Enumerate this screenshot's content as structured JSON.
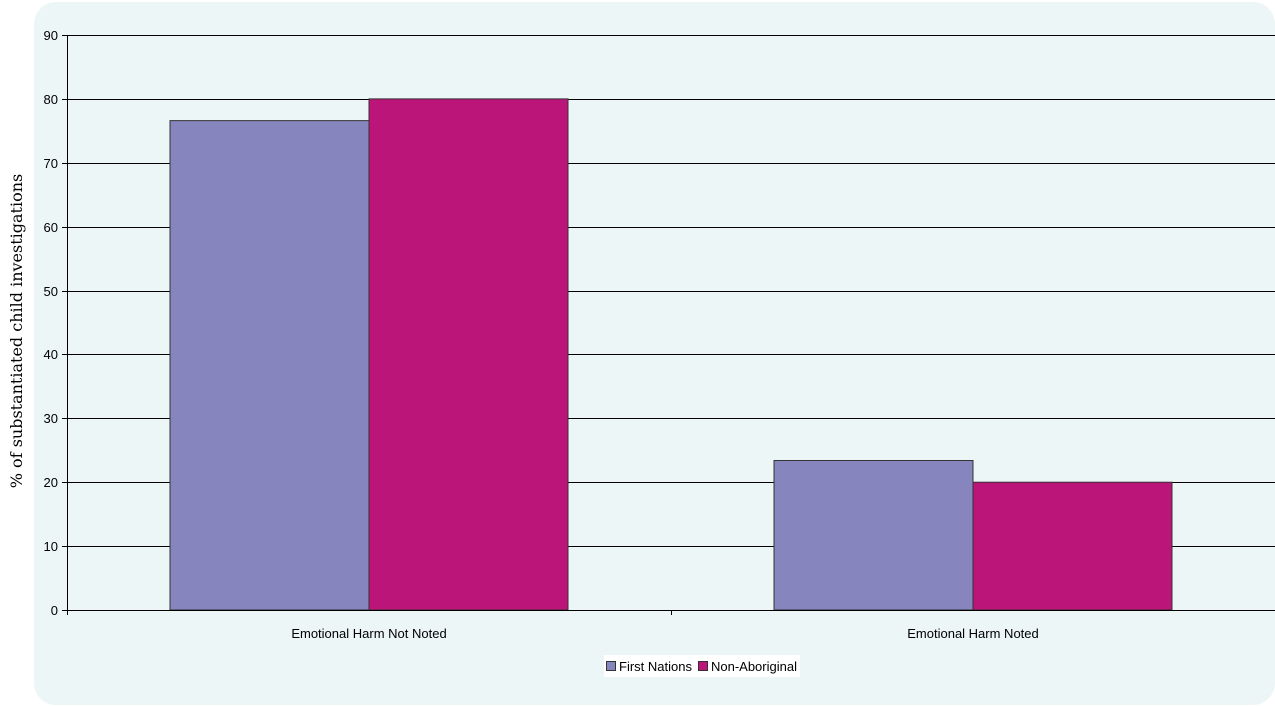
{
  "chart_data": {
    "type": "bar",
    "title": "",
    "xlabel": "",
    "ylabel": "% of substantiated child investigations",
    "categories": [
      "Emotional Harm Not Noted",
      "Emotional Harm Noted"
    ],
    "series": [
      {
        "name": "First Nations",
        "values": [
          76.6,
          23.4
        ],
        "color": "#8785bd"
      },
      {
        "name": "Non-Aboriginal",
        "values": [
          80.0,
          20.0
        ],
        "color": "#bc157a"
      }
    ],
    "ylim": [
      0,
      90
    ],
    "yticks": [
      0,
      10,
      20,
      30,
      40,
      50,
      60,
      70,
      80,
      90
    ],
    "grid": true,
    "legend_position": "bottom-center"
  },
  "colors": {
    "panel_background": "#ecf6f6",
    "gridline": "#000000"
  }
}
